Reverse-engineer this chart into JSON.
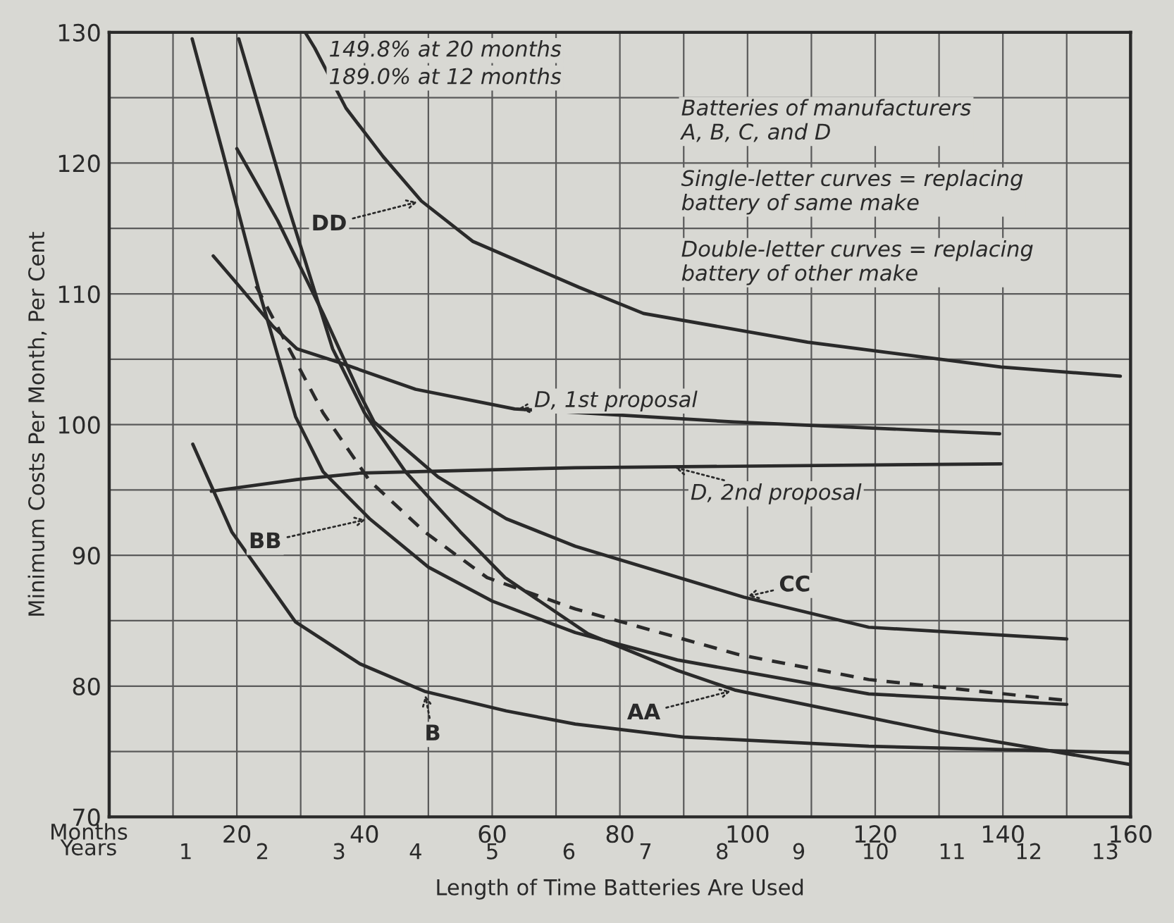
{
  "chart_data": {
    "type": "line",
    "xlabel": "Length of Time Batteries Are Used",
    "ylabel": "Minimum Costs Per Month, Per Cent",
    "x2label": "Years",
    "xlim": [
      0,
      160
    ],
    "xticks": [
      {
        "value": 10,
        "label": null
      },
      20,
      {
        "value": 30,
        "label": null
      },
      40,
      {
        "value": 50,
        "label": null
      },
      60,
      {
        "value": 70,
        "label": null
      },
      80,
      {
        "value": 90,
        "label": null
      },
      100,
      {
        "value": 110,
        "label": null
      },
      120,
      {
        "value": 130,
        "label": null
      },
      140,
      {
        "value": 150,
        "label": null
      },
      160
    ],
    "x2lim": [
      0,
      13.33
    ],
    "x2ticks": [
      1,
      2,
      3,
      4,
      5,
      6,
      7,
      8,
      9,
      10,
      11,
      12,
      13
    ],
    "ylim": [
      70,
      130
    ],
    "yticks": [
      70,
      {
        "value": 75,
        "label": null
      },
      80,
      {
        "value": 85,
        "label": null
      },
      90,
      {
        "value": 95,
        "label": null
      },
      100,
      {
        "value": 105,
        "label": null
      },
      110,
      {
        "value": 115,
        "label": null
      },
      120,
      {
        "value": 125,
        "label": null
      },
      130
    ],
    "grid": true,
    "legend": false,
    "marker": "none",
    "series": [
      {
        "color": "#2a2a2a",
        "line_style": "solid",
        "x": [
          30.7,
          32.2,
          37.1,
          42.9,
          48.9,
          57,
          73.6,
          83.7,
          109.4,
          139.7,
          158.4
        ],
        "values": [
          130,
          128.8,
          124.2,
          120.5,
          117.1,
          114,
          110.5,
          108.5,
          106.3,
          104.4,
          103.7
        ]
      },
      {
        "color": "#2a2a2a",
        "line_style": "solid",
        "x": [
          16.3,
          20,
          25.7,
          29.4,
          35.7,
          48,
          63.5,
          97.9,
          139.5
        ],
        "values": [
          112.9,
          110.8,
          107.5,
          105.8,
          104.8,
          102.7,
          101.2,
          100.2,
          99.3
        ]
      },
      {
        "color": "#2a2a2a",
        "line_style": "solid",
        "x": [
          16,
          29.4,
          39.5,
          73,
          139.7
        ],
        "values": [
          94.9,
          95.8,
          96.3,
          96.7,
          97.0
        ]
      },
      {
        "color": "#2a2a2a",
        "line_style": "solid",
        "x": [
          13.1,
          19.2,
          29.2,
          39.3,
          49.4,
          62.2,
          73,
          90,
          119,
          160
        ],
        "values": [
          98.5,
          91.8,
          84.9,
          81.7,
          79.6,
          78.1,
          77.1,
          76.1,
          75.4,
          74.9
        ]
      },
      {
        "color": "#2a2a2a",
        "line_style": "solid",
        "x": [
          13,
          17.8,
          23.6,
          29.2,
          33.5,
          40.8,
          50,
          60,
          73,
          89,
          119,
          150
        ],
        "values": [
          129.5,
          120.8,
          110,
          100.6,
          96.4,
          92.8,
          89.1,
          86.5,
          84.1,
          82.0,
          79.4,
          78.6
        ]
      },
      {
        "color": "#2a2a2a",
        "line_style": "solid",
        "x": [
          20.3,
          27.9,
          35,
          40,
          46.4,
          55,
          62,
          75,
          89,
          98,
          130,
          160
        ],
        "values": [
          129.5,
          116.9,
          105.8,
          100.9,
          96.4,
          91.8,
          88.3,
          84.0,
          81.2,
          79.7,
          76.5,
          74.0
        ]
      },
      {
        "color": "#2a2a2a",
        "line_style": "solid",
        "x": [
          20,
          26.4,
          33.5,
          39.3,
          41.5,
          51.5,
          62.2,
          73,
          99.4,
          119,
          150
        ],
        "values": [
          121.1,
          115.6,
          108.5,
          102.3,
          100.2,
          96,
          92.8,
          90.7,
          86.8,
          84.5,
          83.6
        ]
      },
      {
        "color": "#2a2a2a",
        "line_style": "dashed",
        "x": [
          23,
          33.5,
          40.8,
          49.4,
          59.2,
          73,
          98.7,
          119,
          150
        ],
        "values": [
          110.6,
          100.9,
          95.7,
          91.8,
          88.3,
          85.9,
          82.4,
          80.5,
          78.9
        ]
      }
    ],
    "annotations": [
      "Months",
      "149.8% at 20 months",
      "189.0% at 12 months",
      "Batteries of manufacturers\nA, B, C, and D",
      "Single-letter curves = replacing\nbattery of same make",
      "Double-letter curves = replacing\nbattery of other make",
      {
        "text": "DD",
        "x": 48.9,
        "y": 117.1
      },
      {
        "text": "D, 1st proposal",
        "x": 63.5,
        "y": 101.2
      },
      {
        "text": "D, 2nd proposal",
        "x": 88,
        "y": 96.8
      },
      {
        "text": "BB",
        "x": 40.8,
        "y": 92.8
      },
      {
        "text": "B",
        "x": 49.4,
        "y": 79.6
      },
      {
        "text": "CC",
        "x": 99.4,
        "y": 86.8
      },
      {
        "text": "AA",
        "x": 98,
        "y": 79.7
      }
    ]
  }
}
